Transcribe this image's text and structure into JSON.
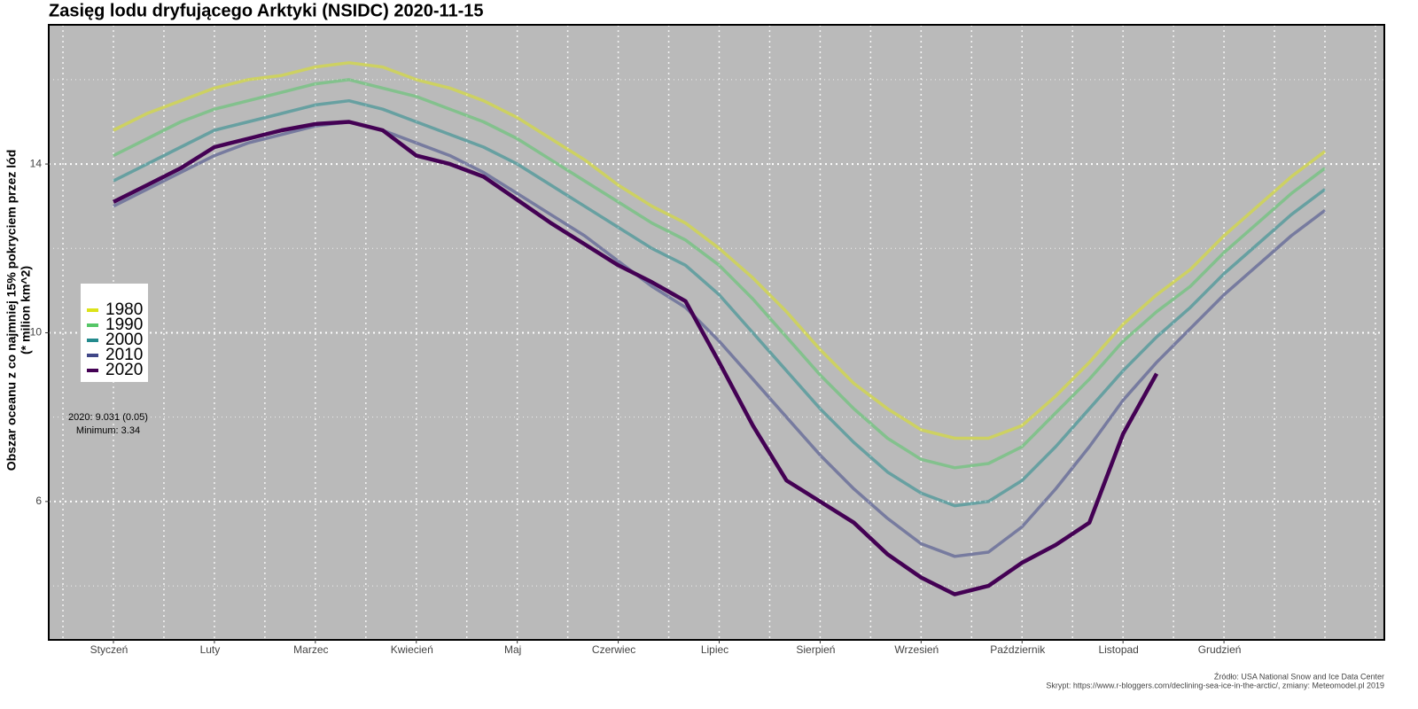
{
  "chart_data": {
    "type": "line",
    "title": "Zasięg lodu dryfującego Arktyki (NSIDC) 2020-11-15",
    "y_label": [
      "Obszar oceanu z co najmniej 15% pokryciem przez lód",
      "(* milion km^2)"
    ],
    "annotations": [
      "2020: 9.031 (0.05)",
      "Minimum: 3.34"
    ],
    "footnotes": [
      "Źródło: USA National Snow and Ice Data Center",
      "Skrypt: https://www.r-bloggers.com/declining-sea-ice-in-the-arctic/, zmiany: Meteomodel.pl 2019"
    ],
    "categories": [
      "Styczeń",
      null,
      null,
      "Luty",
      null,
      null,
      "Marzec",
      null,
      null,
      "Kwiecień",
      null,
      null,
      "Maj",
      null,
      null,
      "Czerwiec",
      null,
      null,
      "Lipiec",
      null,
      null,
      "Sierpień",
      null,
      null,
      "Wrzesień",
      null,
      null,
      "Październik",
      null,
      null,
      "Listopad",
      null,
      null,
      "Grudzień",
      null,
      null,
      null
    ],
    "ylim": [
      2.72,
      17.3
    ],
    "yticks": [
      6,
      10,
      14
    ],
    "minor_yticks": [
      4,
      8,
      12,
      16
    ],
    "grid": true,
    "legend": "left",
    "series": [
      {
        "name": "1980",
        "color": "#dce319",
        "opacity": 0.55,
        "values": [
          14.8,
          15.2,
          15.5,
          15.8,
          16.0,
          16.1,
          16.3,
          16.4,
          16.3,
          16.0,
          15.8,
          15.5,
          15.1,
          14.6,
          14.1,
          13.5,
          13.0,
          12.6,
          12.0,
          11.3,
          10.5,
          9.6,
          8.8,
          8.2,
          7.7,
          7.5,
          7.5,
          7.8,
          8.5,
          9.3,
          10.2,
          10.9,
          11.5,
          12.3,
          13.0,
          13.7,
          14.3
        ]
      },
      {
        "name": "1990",
        "color": "#55c667",
        "opacity": 0.55,
        "values": [
          14.2,
          14.6,
          15.0,
          15.3,
          15.5,
          15.7,
          15.9,
          16.0,
          15.8,
          15.6,
          15.3,
          15.0,
          14.6,
          14.1,
          13.6,
          13.1,
          12.6,
          12.2,
          11.6,
          10.8,
          9.9,
          9.0,
          8.2,
          7.5,
          7.0,
          6.8,
          6.9,
          7.3,
          8.1,
          8.9,
          9.8,
          10.5,
          11.1,
          11.9,
          12.6,
          13.3,
          13.9
        ]
      },
      {
        "name": "2000",
        "color": "#238a8d",
        "opacity": 0.55,
        "values": [
          13.6,
          14.0,
          14.4,
          14.8,
          15.0,
          15.2,
          15.4,
          15.5,
          15.3,
          15.0,
          14.7,
          14.4,
          14.0,
          13.5,
          13.0,
          12.5,
          12.0,
          11.6,
          10.9,
          10.0,
          9.1,
          8.2,
          7.4,
          6.7,
          6.2,
          5.9,
          6.0,
          6.5,
          7.3,
          8.2,
          9.1,
          9.9,
          10.6,
          11.4,
          12.1,
          12.8,
          13.4
        ]
      },
      {
        "name": "2010",
        "color": "#404788",
        "opacity": 0.55,
        "values": [
          13.0,
          13.4,
          13.8,
          14.2,
          14.5,
          14.7,
          14.9,
          15.0,
          14.8,
          14.5,
          14.2,
          13.8,
          13.3,
          12.8,
          12.3,
          11.7,
          11.1,
          10.6,
          9.8,
          8.9,
          8.0,
          7.1,
          6.3,
          5.6,
          5.0,
          4.7,
          4.8,
          5.4,
          6.3,
          7.3,
          8.4,
          9.3,
          10.1,
          10.9,
          11.6,
          12.3,
          12.9
        ]
      },
      {
        "name": "2020",
        "color": "#440154",
        "opacity": 1,
        "values": [
          13.1,
          13.5,
          13.9,
          14.4,
          14.6,
          14.8,
          14.95,
          15.0,
          14.8,
          14.2,
          14.0,
          13.7,
          13.15,
          12.6,
          12.1,
          11.6,
          11.2,
          10.75,
          9.3,
          7.8,
          6.5,
          6.0,
          5.5,
          4.75,
          4.2,
          3.8,
          4.0,
          4.55,
          4.97,
          5.5,
          7.6,
          9.03,
          null,
          null,
          null,
          null,
          null
        ]
      }
    ]
  }
}
